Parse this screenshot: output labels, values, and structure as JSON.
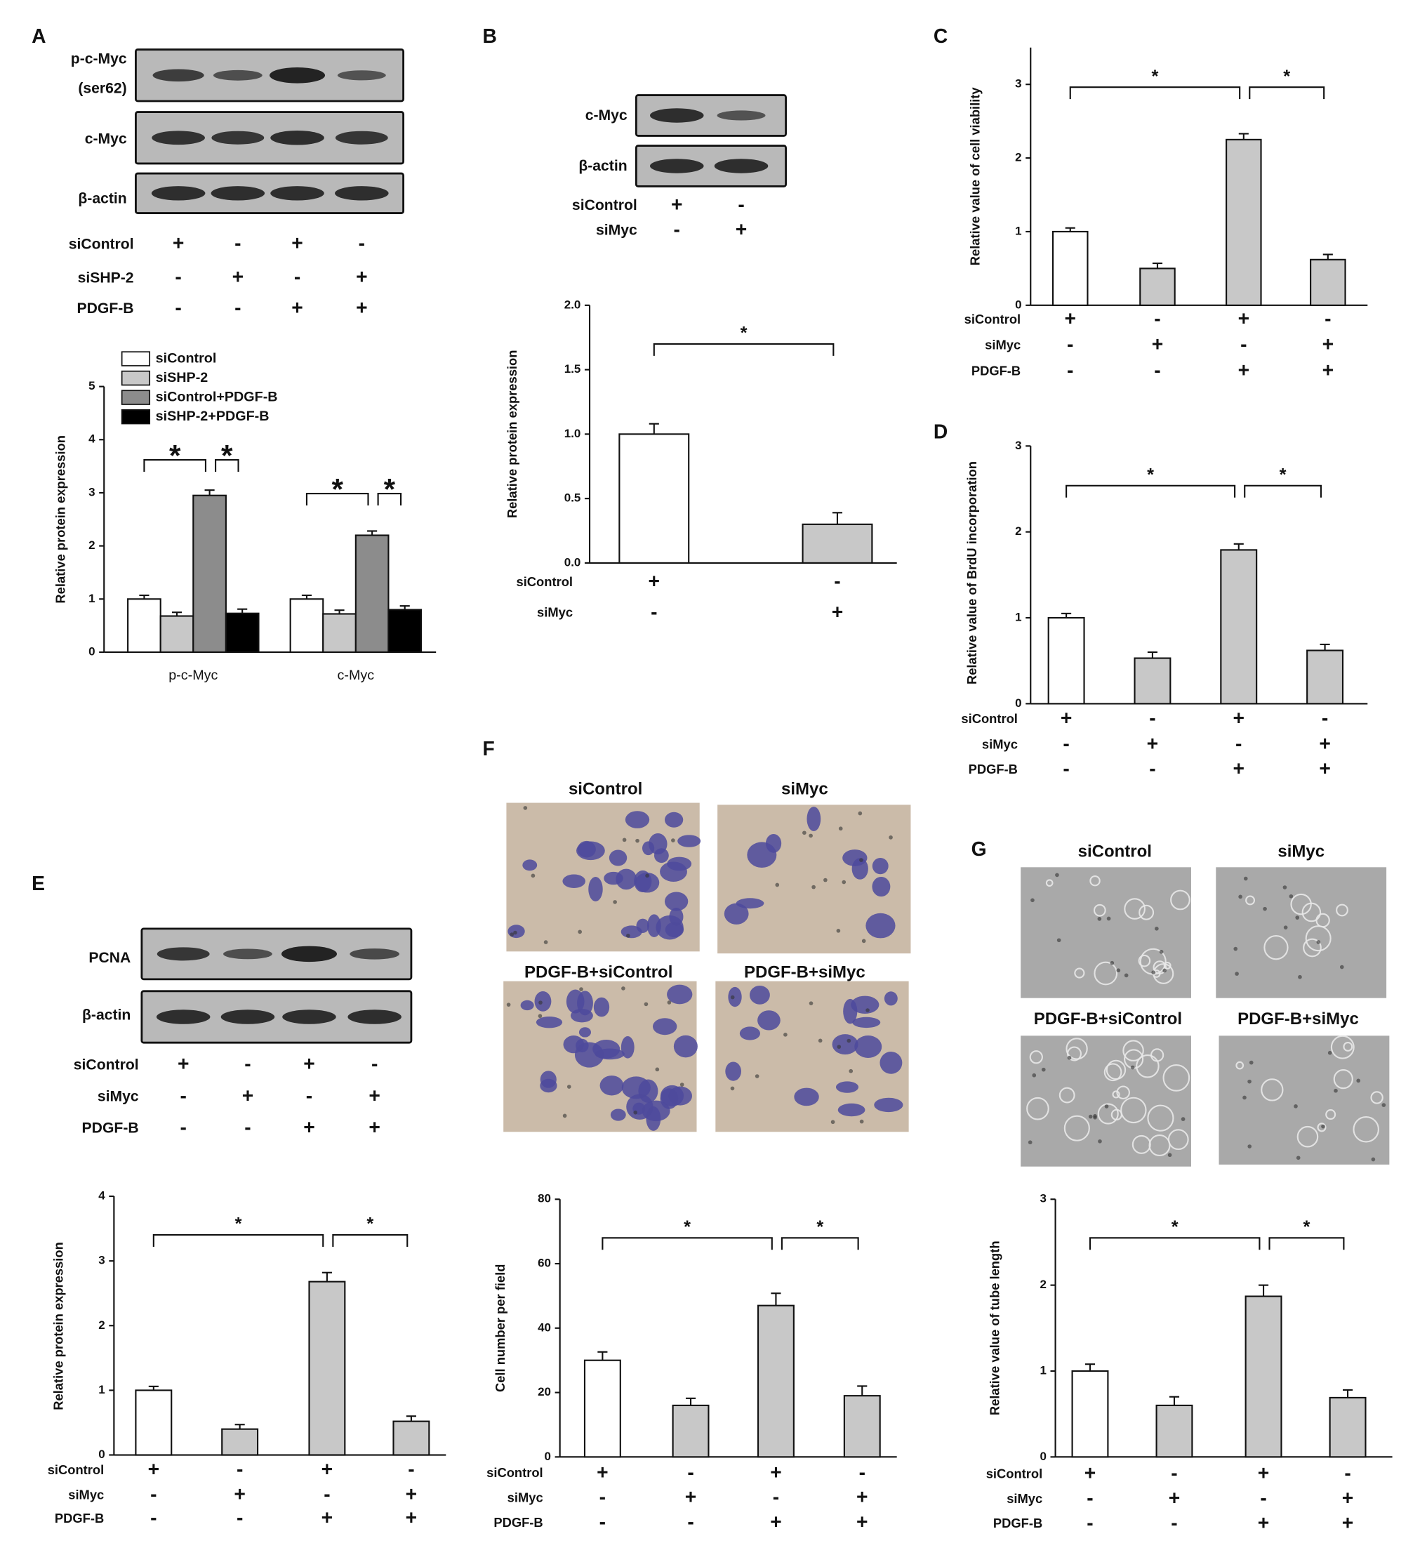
{
  "letters": [
    "A",
    "B",
    "C",
    "D",
    "E",
    "F",
    "G"
  ],
  "blots": [
    {
      "rows": [
        [
          "p-c-Myc",
          "(ser62)"
        ],
        [
          "c-Myc"
        ],
        [
          "β-actin"
        ]
      ],
      "conditions": [
        {
          "label": "siControl",
          "marks": [
            "+",
            "-",
            "+",
            "-"
          ]
        },
        {
          "label": "siSHP-2",
          "marks": [
            "-",
            "+",
            "-",
            "+"
          ]
        },
        {
          "label": "PDGF-B",
          "marks": [
            "-",
            "-",
            "+",
            "+"
          ]
        }
      ]
    },
    {
      "rows": [
        [
          "c-Myc"
        ],
        [
          "β-actin"
        ]
      ],
      "conditions": [
        {
          "label": "siControl",
          "marks": [
            "+",
            "-"
          ]
        },
        {
          "label": "siMyc",
          "marks": [
            "-",
            "+"
          ]
        }
      ]
    },
    {
      "rows": [
        [
          "PCNA"
        ],
        [
          "β-actin"
        ]
      ],
      "conditions": [
        {
          "label": "siControl",
          "marks": [
            "+",
            "-",
            "+",
            "-"
          ]
        },
        {
          "label": "siMyc",
          "marks": [
            "-",
            "+",
            "-",
            "+"
          ]
        },
        {
          "label": "PDGF-B",
          "marks": [
            "-",
            "-",
            "+",
            "+"
          ]
        }
      ]
    }
  ],
  "images": [
    {
      "titles": [
        "siControl",
        "siMyc",
        "PDGF-B+siControl",
        "PDGF-B+siMyc"
      ]
    },
    {
      "titles": [
        "siControl",
        "siMyc",
        "PDGF-B+siControl",
        "PDGF-B+siMyc"
      ]
    }
  ],
  "chart_data": [
    {
      "type": "bar",
      "ylabel": "Relative protein expression",
      "categories": [
        "p-c-Myc",
        "c-Myc"
      ],
      "series": [
        {
          "name": "siControl",
          "color": "#ffffff",
          "values": [
            1.0,
            1.0
          ],
          "errors": [
            0.07,
            0.07
          ]
        },
        {
          "name": "siSHP-2",
          "color": "#c8c8c8",
          "values": [
            0.68,
            0.72
          ],
          "errors": [
            0.07,
            0.07
          ]
        },
        {
          "name": "siControl+PDGF-B",
          "color": "#8c8c8c",
          "values": [
            2.95,
            2.2
          ],
          "errors": [
            0.1,
            0.08
          ]
        },
        {
          "name": "siSHP-2+PDGF-B",
          "color": "#000000",
          "values": [
            0.73,
            0.8
          ],
          "errors": [
            0.08,
            0.07
          ]
        }
      ],
      "ylim": [
        0,
        5
      ],
      "yticks": [
        0,
        1,
        2,
        3,
        4,
        5
      ],
      "annotations": [
        "*",
        "*",
        "*",
        "*"
      ]
    },
    {
      "type": "bar",
      "ylabel": "Relative protein expression",
      "values": [
        1.0,
        0.3
      ],
      "errors": [
        0.08,
        0.09
      ],
      "colors": [
        "#ffffff",
        "#c8c8c8"
      ],
      "ylim": [
        0,
        2
      ],
      "yticks": [
        {
          "value": 0,
          "label": "0.0"
        },
        0.5,
        {
          "value": 1,
          "label": "1.0"
        },
        1.5,
        {
          "value": 2,
          "label": "2.0"
        }
      ],
      "conditions": [
        {
          "label": "siControl",
          "marks": [
            "+",
            "-"
          ]
        },
        {
          "label": "siMyc",
          "marks": [
            "-",
            "+"
          ]
        }
      ],
      "annotations": [
        "*"
      ]
    },
    {
      "type": "bar",
      "ylabel": "Relative value of cell viability",
      "values": [
        1.0,
        0.5,
        2.25,
        0.62
      ],
      "errors": [
        0.05,
        0.07,
        0.08,
        0.07
      ],
      "colors": [
        "#ffffff",
        "#c8c8c8",
        "#c8c8c8",
        "#c8c8c8"
      ],
      "ylim": [
        0,
        3.5
      ],
      "yticks": [
        0,
        1,
        2,
        3
      ],
      "conditions": [
        {
          "label": "siControl",
          "marks": [
            "+",
            "-",
            "+",
            "-"
          ]
        },
        {
          "label": "siMyc",
          "marks": [
            "-",
            "+",
            "-",
            "+"
          ]
        },
        {
          "label": "PDGF-B",
          "marks": [
            "-",
            "-",
            "+",
            "+"
          ]
        }
      ],
      "annotations": [
        "*",
        "*"
      ]
    },
    {
      "type": "bar",
      "ylabel": "Relative value of BrdU incorporation",
      "values": [
        1.0,
        0.53,
        1.79,
        0.62
      ],
      "errors": [
        0.05,
        0.07,
        0.07,
        0.07
      ],
      "colors": [
        "#ffffff",
        "#c8c8c8",
        "#c8c8c8",
        "#c8c8c8"
      ],
      "ylim": [
        0,
        3
      ],
      "yticks": [
        0,
        1,
        2,
        3
      ],
      "conditions": [
        {
          "label": "siControl",
          "marks": [
            "+",
            "-",
            "+",
            "-"
          ]
        },
        {
          "label": "siMyc",
          "marks": [
            "-",
            "+",
            "-",
            "+"
          ]
        },
        {
          "label": "PDGF-B",
          "marks": [
            "-",
            "-",
            "+",
            "+"
          ]
        }
      ],
      "annotations": [
        "*",
        "*"
      ]
    },
    {
      "type": "bar",
      "ylabel": "Relative protein expression",
      "values": [
        1.0,
        0.4,
        2.68,
        0.52
      ],
      "errors": [
        0.06,
        0.07,
        0.14,
        0.08
      ],
      "colors": [
        "#ffffff",
        "#c8c8c8",
        "#c8c8c8",
        "#c8c8c8"
      ],
      "ylim": [
        0,
        4
      ],
      "yticks": [
        0,
        1,
        2,
        3,
        4
      ],
      "conditions": [
        {
          "label": "siControl",
          "marks": [
            "+",
            "-",
            "+",
            "-"
          ]
        },
        {
          "label": "siMyc",
          "marks": [
            "-",
            "+",
            "-",
            "+"
          ]
        },
        {
          "label": "PDGF-B",
          "marks": [
            "-",
            "-",
            "+",
            "+"
          ]
        }
      ],
      "annotations": [
        "*",
        "*"
      ]
    },
    {
      "type": "bar",
      "ylabel": "Cell number per field",
      "values": [
        30,
        16,
        47,
        19
      ],
      "errors": [
        2.6,
        2.2,
        3.8,
        3
      ],
      "colors": [
        "#ffffff",
        "#c8c8c8",
        "#c8c8c8",
        "#c8c8c8"
      ],
      "ylim": [
        0,
        80
      ],
      "yticks": [
        0,
        20,
        40,
        60,
        80
      ],
      "conditions": [
        {
          "label": "siControl",
          "marks": [
            "+",
            "-",
            "+",
            "-"
          ]
        },
        {
          "label": "siMyc",
          "marks": [
            "-",
            "+",
            "-",
            "+"
          ]
        },
        {
          "label": "PDGF-B",
          "marks": [
            "-",
            "-",
            "+",
            "+"
          ]
        }
      ],
      "annotations": [
        "*",
        "*"
      ]
    },
    {
      "type": "bar",
      "ylabel": "Relative value of tube length",
      "values": [
        1.0,
        0.6,
        1.87,
        0.69
      ],
      "errors": [
        0.08,
        0.1,
        0.13,
        0.09
      ],
      "colors": [
        "#ffffff",
        "#c8c8c8",
        "#c8c8c8",
        "#c8c8c8"
      ],
      "ylim": [
        0,
        3
      ],
      "yticks": [
        0,
        1,
        2,
        3
      ],
      "conditions": [
        {
          "label": "siControl",
          "marks": [
            "+",
            "-",
            "+",
            "-"
          ]
        },
        {
          "label": "siMyc",
          "marks": [
            "-",
            "+",
            "-",
            "+"
          ]
        },
        {
          "label": "PDGF-B",
          "marks": [
            "-",
            "-",
            "+",
            "+"
          ]
        }
      ],
      "annotations": [
        "*",
        "*"
      ]
    }
  ]
}
